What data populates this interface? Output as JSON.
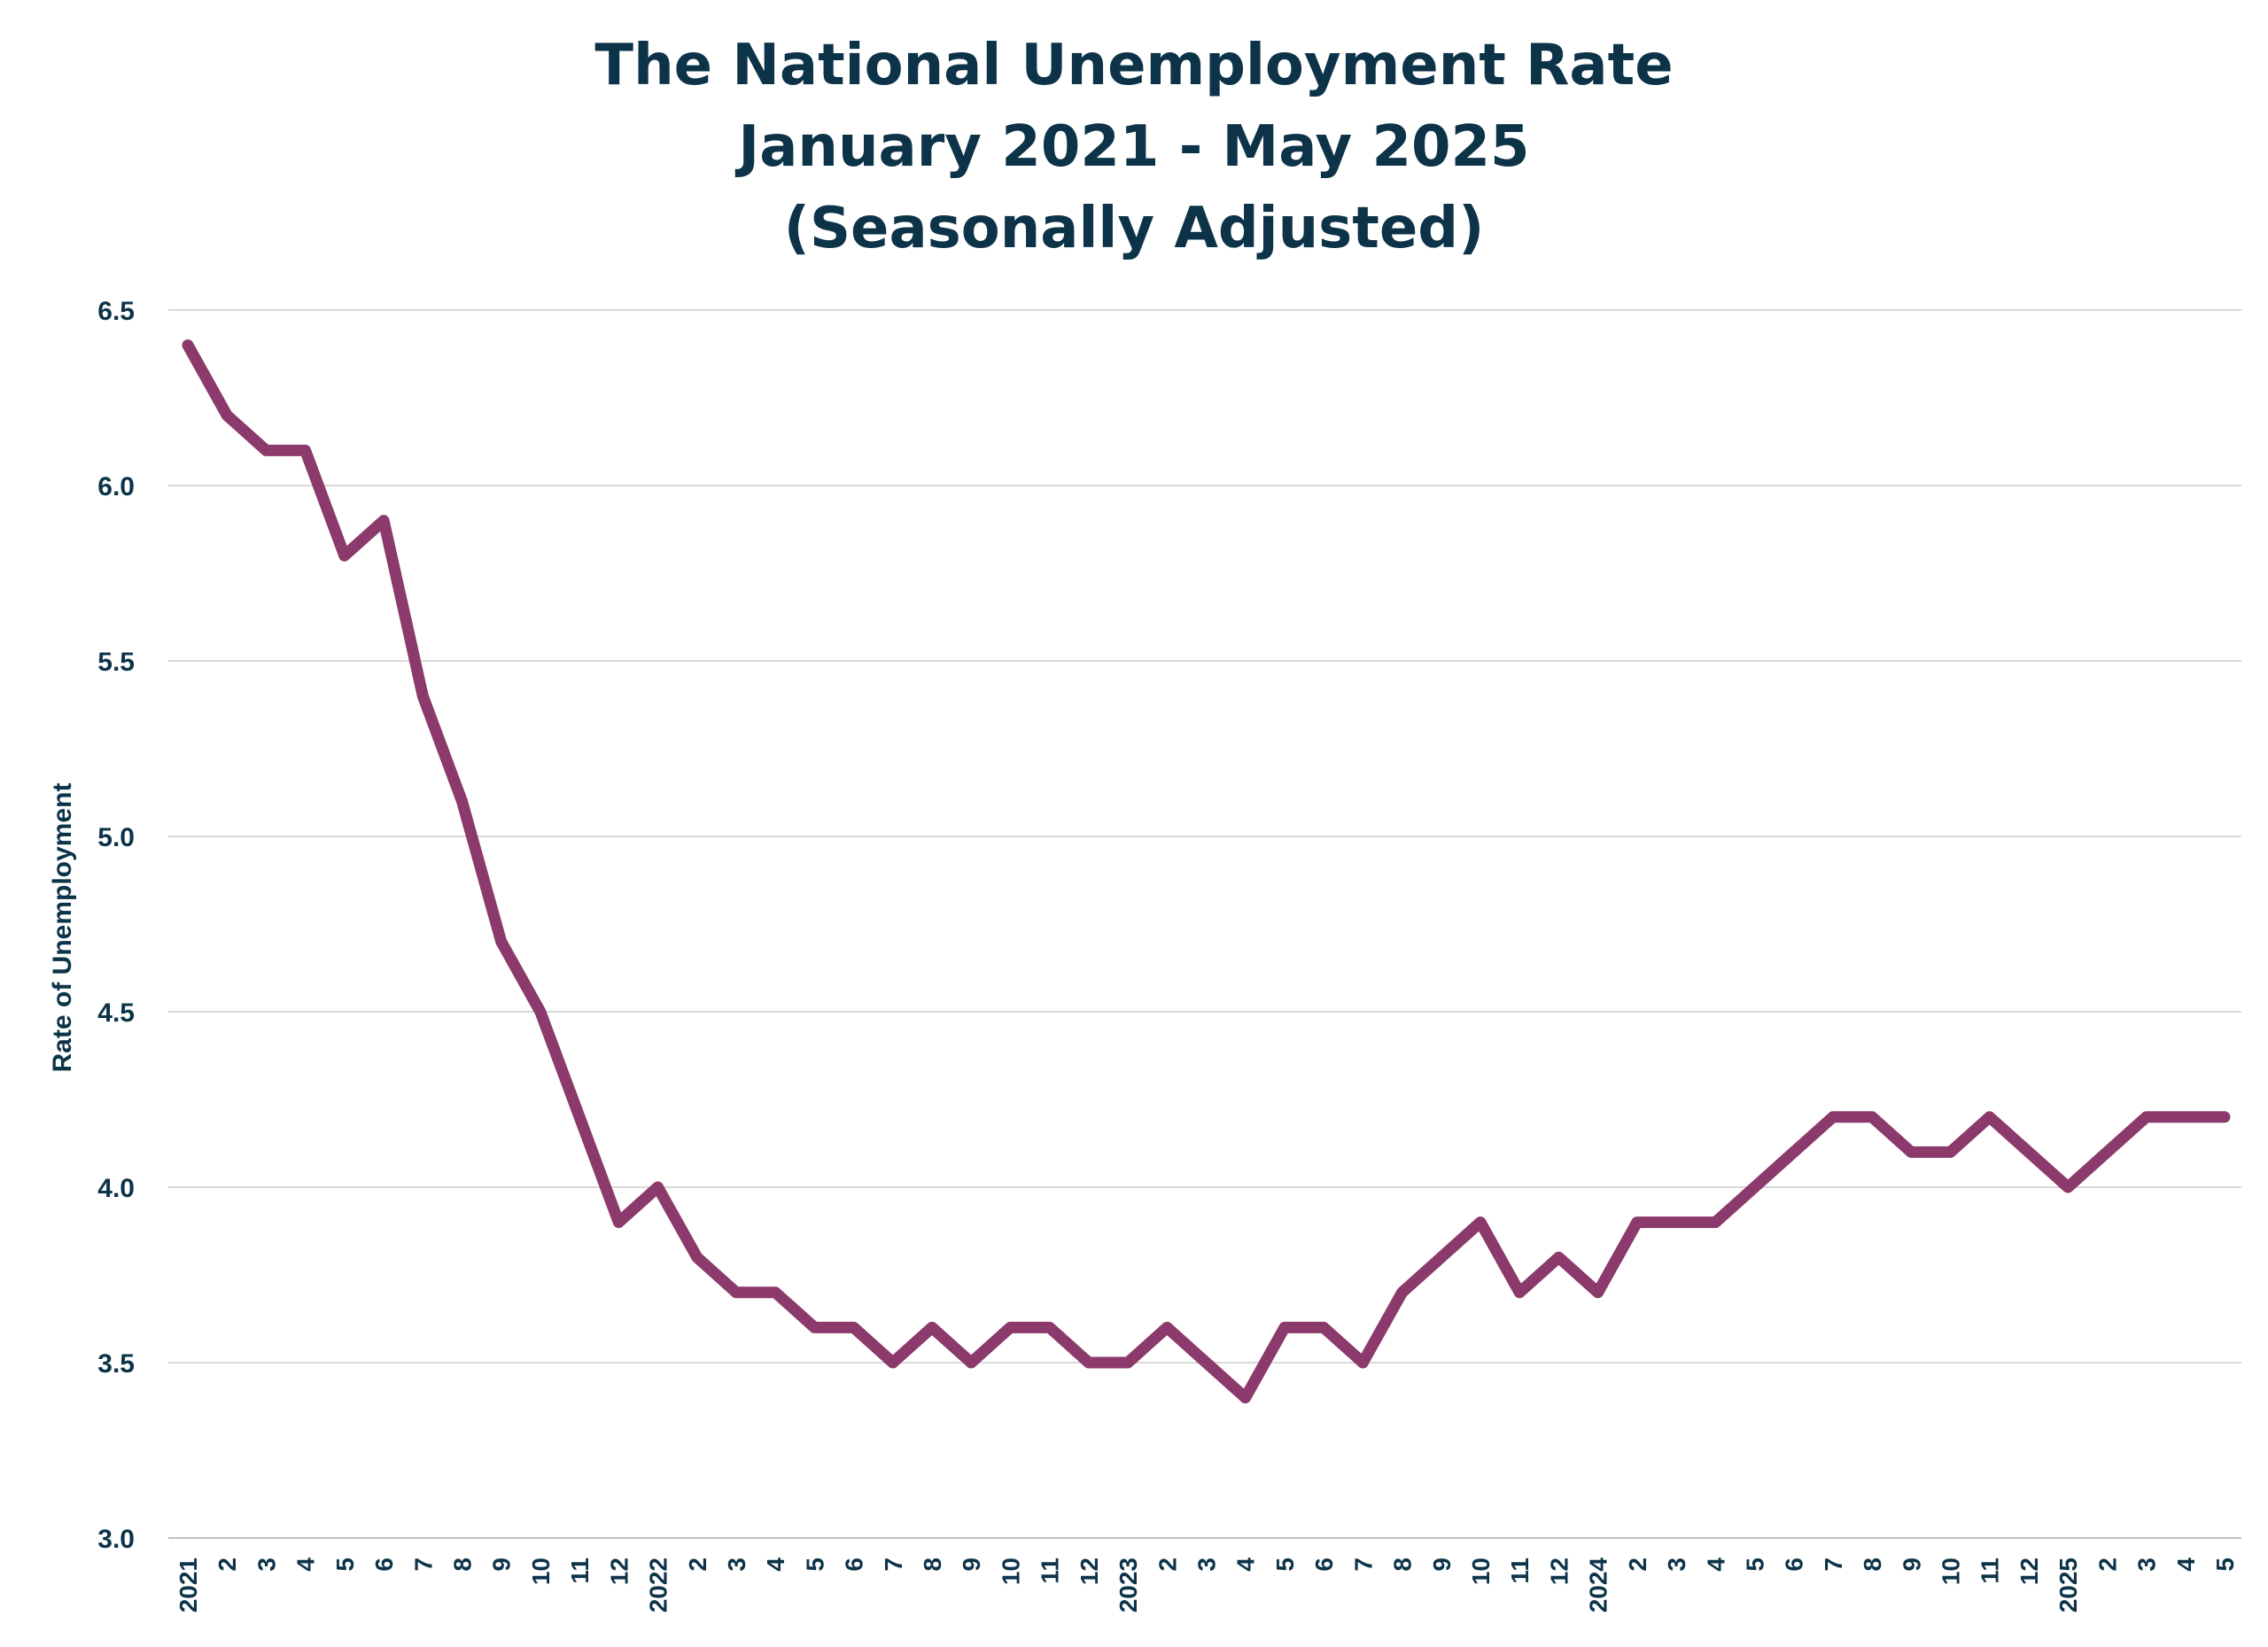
{
  "chart_data": {
    "type": "line",
    "title": [
      "The National Unemployment Rate",
      "January 2021 - May 2025",
      "(Seasonally Adjusted)"
    ],
    "ylabel": "Rate of Unemployment",
    "xlabel": "",
    "ylim": [
      3.0,
      6.5
    ],
    "yticks": [
      "3.0",
      "3.5",
      "4.0",
      "4.5",
      "5.0",
      "5.5",
      "6.0",
      "6.5"
    ],
    "grid": true,
    "x": [
      "2021",
      "2",
      "3",
      "4",
      "5",
      "6",
      "7",
      "8",
      "9",
      "10",
      "11",
      "12",
      "2022",
      "2",
      "3",
      "4",
      "5",
      "6",
      "7",
      "8",
      "9",
      "10",
      "11",
      "12",
      "2023",
      "2",
      "3",
      "4",
      "5",
      "6",
      "7",
      "8",
      "9",
      "10",
      "11",
      "12",
      "2024",
      "2",
      "3",
      "4",
      "5",
      "6",
      "7",
      "8",
      "9",
      "10",
      "11",
      "12",
      "2025",
      "2",
      "3",
      "4",
      "5"
    ],
    "series": [
      {
        "color": "#8b3a6b",
        "values": [
          6.4,
          6.2,
          6.1,
          6.1,
          5.8,
          5.9,
          5.4,
          5.1,
          4.7,
          4.5,
          4.2,
          3.9,
          4.0,
          3.8,
          3.7,
          3.7,
          3.6,
          3.6,
          3.5,
          3.6,
          3.5,
          3.6,
          3.6,
          3.5,
          3.5,
          3.6,
          3.5,
          3.4,
          3.6,
          3.6,
          3.5,
          3.7,
          3.8,
          3.9,
          3.7,
          3.8,
          3.7,
          3.9,
          3.9,
          3.9,
          4.0,
          4.1,
          4.2,
          4.2,
          4.1,
          4.1,
          4.2,
          4.1,
          4.0,
          4.1,
          4.2,
          4.2,
          4.2
        ]
      }
    ],
    "colors": {
      "text": "#0d3349",
      "line": "#8b3a6b",
      "grid": "#d9d9d9"
    }
  }
}
